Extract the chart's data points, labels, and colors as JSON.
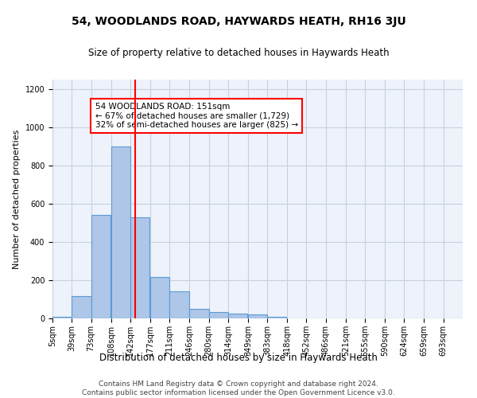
{
  "title": "54, WOODLANDS ROAD, HAYWARDS HEATH, RH16 3JU",
  "subtitle": "Size of property relative to detached houses in Haywards Heath",
  "xlabel": "Distribution of detached houses by size in Haywards Heath",
  "ylabel": "Number of detached properties",
  "footer_line1": "Contains HM Land Registry data © Crown copyright and database right 2024.",
  "footer_line2": "Contains public sector information licensed under the Open Government Licence v3.0.",
  "bin_labels": [
    "5sqm",
    "39sqm",
    "73sqm",
    "108sqm",
    "142sqm",
    "177sqm",
    "211sqm",
    "246sqm",
    "280sqm",
    "314sqm",
    "349sqm",
    "383sqm",
    "418sqm",
    "452sqm",
    "486sqm",
    "521sqm",
    "555sqm",
    "590sqm",
    "624sqm",
    "659sqm",
    "693sqm"
  ],
  "bin_edges": [
    5,
    39,
    73,
    108,
    142,
    177,
    211,
    246,
    280,
    314,
    349,
    383,
    418,
    452,
    486,
    521,
    555,
    590,
    624,
    659,
    693,
    727
  ],
  "bar_values": [
    10,
    115,
    540,
    900,
    530,
    215,
    140,
    50,
    35,
    25,
    20,
    8,
    0,
    0,
    0,
    0,
    0,
    0,
    0,
    0,
    0
  ],
  "bar_color": "#aec6e8",
  "bar_edgecolor": "#5b9bd5",
  "bar_linewidth": 0.8,
  "grid_color": "#c8d0e0",
  "background_color": "#eef2fa",
  "vline_x": 151,
  "vline_color": "red",
  "vline_linewidth": 1.5,
  "ylim": [
    0,
    1250
  ],
  "yticks": [
    0,
    200,
    400,
    600,
    800,
    1000,
    1200
  ],
  "annotation_text": "54 WOODLANDS ROAD: 151sqm\n← 67% of detached houses are smaller (1,729)\n32% of semi-detached houses are larger (825) →",
  "annotation_box_edgecolor": "red",
  "annotation_box_facecolor": "white",
  "annotation_fontsize": 7.5,
  "title_fontsize": 10,
  "subtitle_fontsize": 8.5,
  "xlabel_fontsize": 8.5,
  "ylabel_fontsize": 8,
  "tick_fontsize": 7,
  "footer_fontsize": 6.5
}
